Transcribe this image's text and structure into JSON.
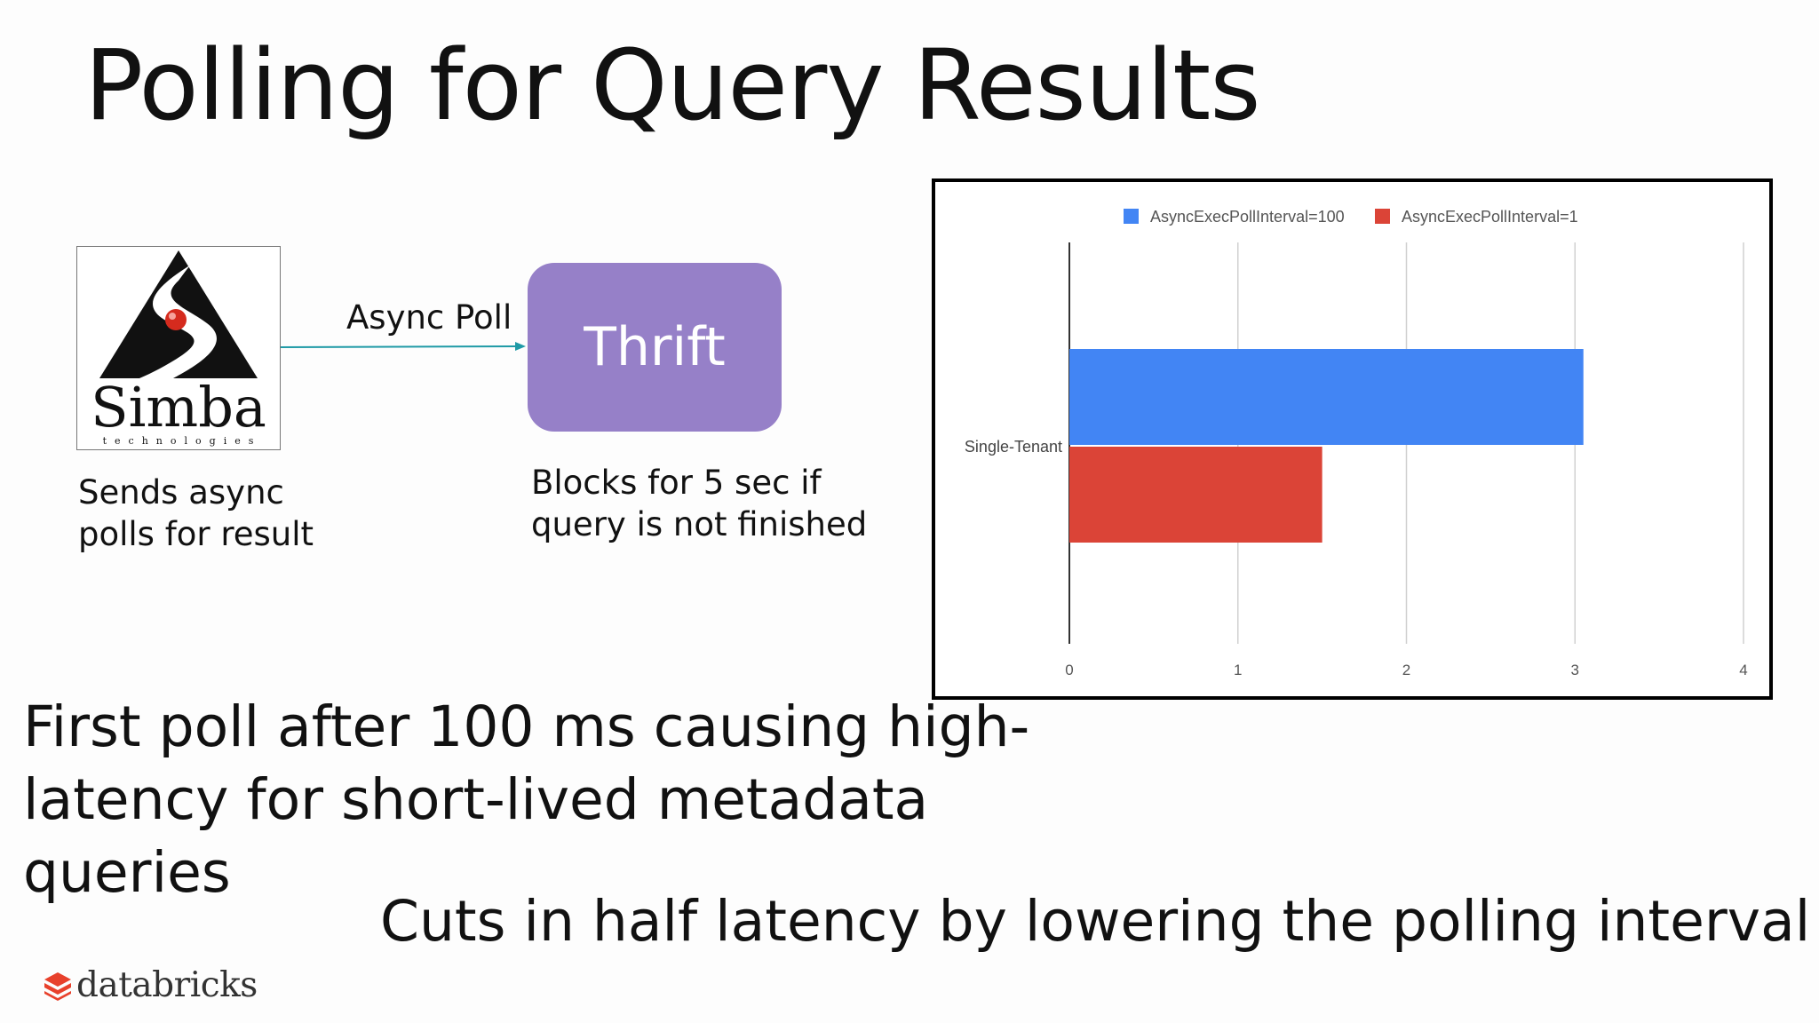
{
  "slide": {
    "title": "Polling for Query Results",
    "simba_logo": {
      "wordmark": "Simba",
      "tagline": "technologies",
      "icon": "simba-triangle-logo-icon"
    },
    "arrow_label": "Async Poll",
    "thrift_box": {
      "label": "Thrift",
      "color": "#9680c8"
    },
    "simba_caption": "Sends async polls for result",
    "thrift_caption": "Blocks for 5 sec if query is not finished",
    "main_point": "First poll after 100 ms causing high-latency for short-lived metadata queries",
    "summary": "Cuts in half latency by lowering the polling interval",
    "brand": {
      "text": "databricks",
      "icon": "databricks-logo-icon",
      "color": "#e8412c"
    }
  },
  "chart_data": {
    "type": "bar",
    "orientation": "horizontal",
    "categories": [
      "Single-Tenant"
    ],
    "series": [
      {
        "name": "AsyncExecPollInterval=100",
        "values": [
          3.05
        ],
        "color": "#4285f4"
      },
      {
        "name": "AsyncExecPollInterval=1",
        "values": [
          1.5
        ],
        "color": "#db4437"
      }
    ],
    "xlim": [
      0,
      4
    ],
    "xticks": [
      0,
      1,
      2,
      3,
      4
    ],
    "grid": true,
    "legend": "top"
  }
}
